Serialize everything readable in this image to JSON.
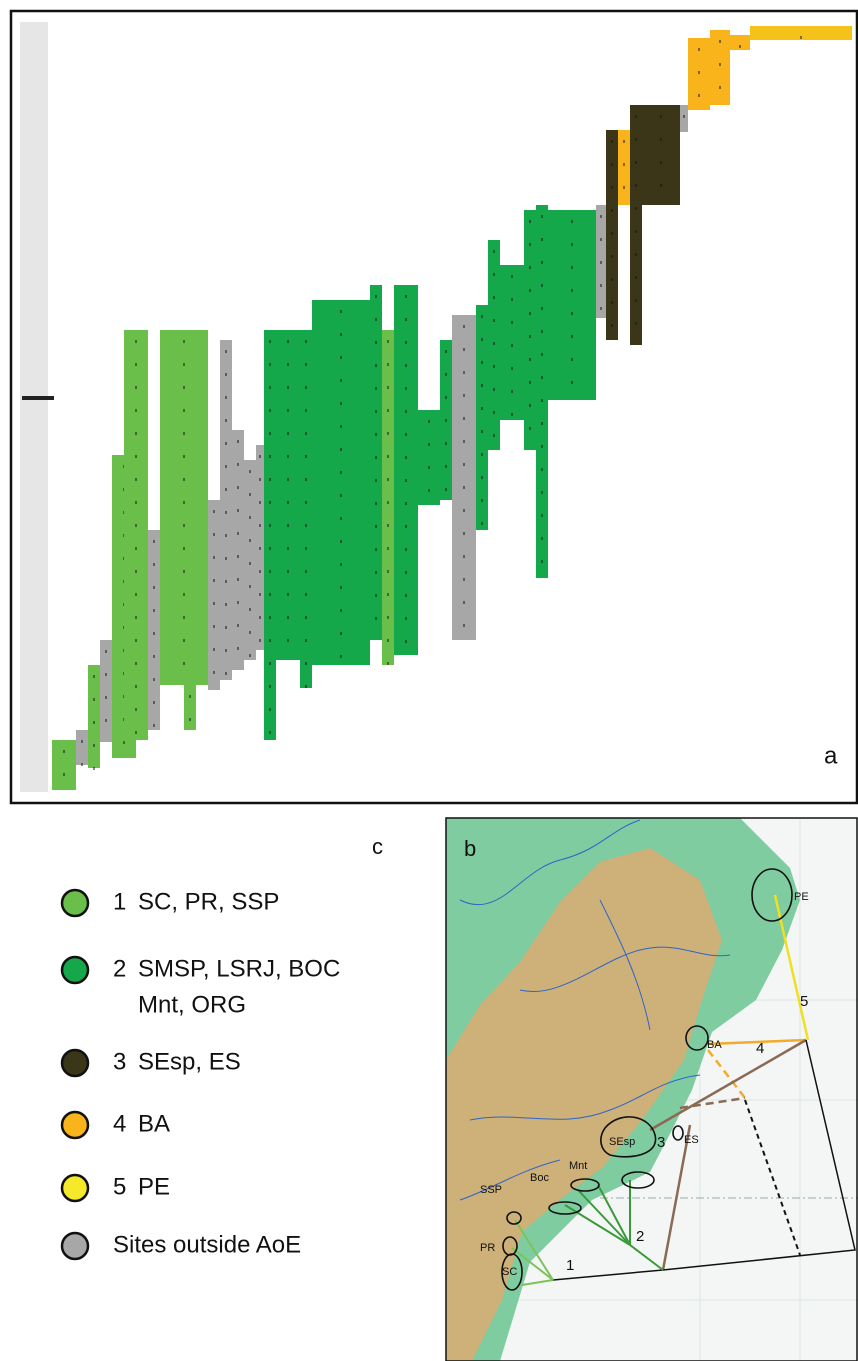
{
  "panels": {
    "a": {
      "label": "a"
    },
    "b": {
      "label": "b",
      "map_labels": [
        "PE",
        "BA",
        "SEsp",
        "ES",
        "Mnt",
        "Boc",
        "SSP",
        "PR",
        "SC"
      ],
      "route_labels": [
        "1",
        "2",
        "3",
        "4",
        "5"
      ]
    },
    "c": {
      "label": "c",
      "legend": [
        {
          "number": "1",
          "lines": [
            "SC, PR, SSP"
          ],
          "color": "#6abf4b"
        },
        {
          "number": "2",
          "lines": [
            "SMSP, LSRJ, BOC",
            "Mnt, ORG"
          ],
          "color": "#15a84a"
        },
        {
          "number": "3",
          "lines": [
            "SEsp, ES"
          ],
          "color": "#3b3617"
        },
        {
          "number": "4",
          "lines": [
            "BA"
          ],
          "color": "#f8b41a"
        },
        {
          "number": "5",
          "lines": [
            "PE"
          ],
          "color": "#f4ea2a"
        },
        {
          "lines": [
            "Sites outside AoE"
          ],
          "color": "#a7a7a7"
        }
      ]
    }
  }
}
